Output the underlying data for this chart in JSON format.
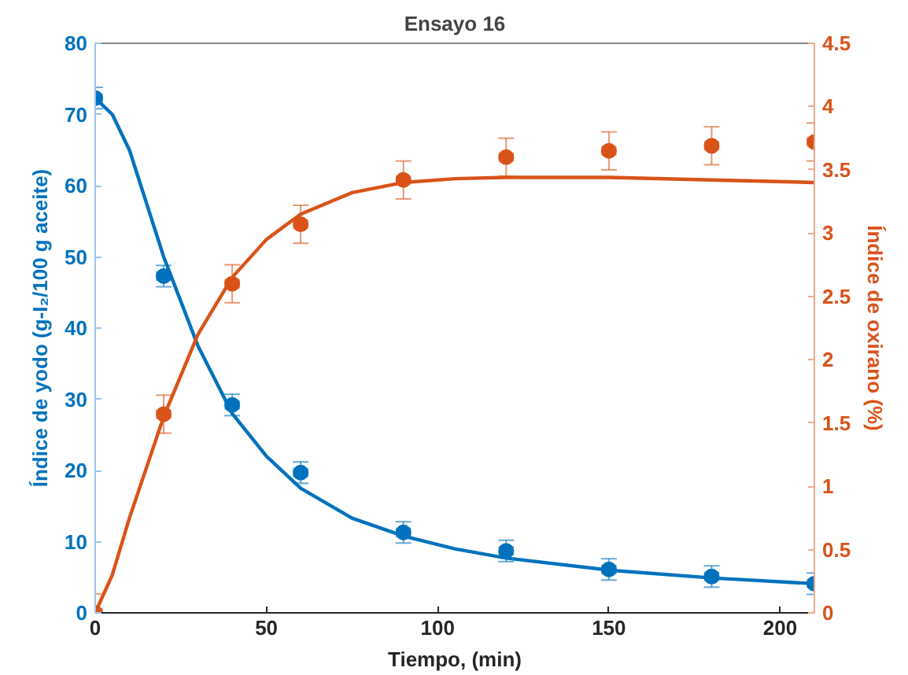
{
  "chart_data": {
    "type": "scatter",
    "title": "Ensayo 16",
    "xlabel": "Tiempo, (min)",
    "ylabel": "Índice de yodo (g-I₂/100 g aceite)",
    "y2label": "Índice de oxirano (%)",
    "xlim": [
      0,
      210
    ],
    "xticks": [
      0,
      50,
      100,
      150,
      200
    ],
    "ylim": [
      0,
      80
    ],
    "yticks": [
      0,
      10,
      20,
      30,
      40,
      50,
      60,
      70,
      80
    ],
    "y2lim": [
      0,
      4.5
    ],
    "y2ticks": [
      0,
      0.5,
      1,
      1.5,
      2,
      2.5,
      3,
      3.5,
      4,
      4.5
    ],
    "marker": "circle",
    "grid": false,
    "series": [
      {
        "color": "#0072bd",
        "x": [
          0,
          20,
          40,
          60,
          90,
          120,
          150,
          180,
          210
        ],
        "values": [
          72.3,
          47.3,
          29.2,
          19.7,
          11.3,
          8.7,
          6.1,
          5.1,
          4.1
        ],
        "errors": [
          1.5,
          1.5,
          1.5,
          1.5,
          1.5,
          1.5,
          1.5,
          1.5,
          1.5
        ],
        "xerrors": [
          2,
          2,
          2,
          2,
          2,
          2,
          2,
          2,
          2
        ]
      },
      {
        "type": "line",
        "color": "#0072bd",
        "marker": "none",
        "x": [
          0,
          5,
          10,
          20,
          30,
          40,
          50,
          60,
          75,
          90,
          105,
          120,
          150,
          180,
          210
        ],
        "values": [
          72.3,
          70,
          65,
          50,
          37.5,
          28,
          22,
          17.5,
          13.3,
          10.8,
          9,
          7.7,
          6,
          4.9,
          4.1
        ]
      },
      {
        "axis": "y2",
        "color": "#d95319",
        "x": [
          0,
          20,
          40,
          60,
          90,
          120,
          150,
          180,
          210
        ],
        "values": [
          0,
          1.57,
          2.6,
          3.07,
          3.42,
          3.6,
          3.65,
          3.69,
          3.72
        ],
        "errors": [
          0.15,
          0.15,
          0.15,
          0.15,
          0.15,
          0.15,
          0.15,
          0.15,
          0.15
        ],
        "xerrors": [
          2,
          2,
          2,
          2,
          2,
          2,
          2,
          2,
          2
        ]
      },
      {
        "type": "line",
        "axis": "y2",
        "color": "#d95319",
        "marker": "none",
        "x": [
          0,
          5,
          10,
          20,
          30,
          40,
          50,
          60,
          75,
          90,
          105,
          120,
          150,
          180,
          210
        ],
        "values": [
          0,
          0.3,
          0.75,
          1.55,
          2.2,
          2.65,
          2.95,
          3.15,
          3.32,
          3.4,
          3.43,
          3.44,
          3.44,
          3.42,
          3.4
        ]
      }
    ]
  }
}
